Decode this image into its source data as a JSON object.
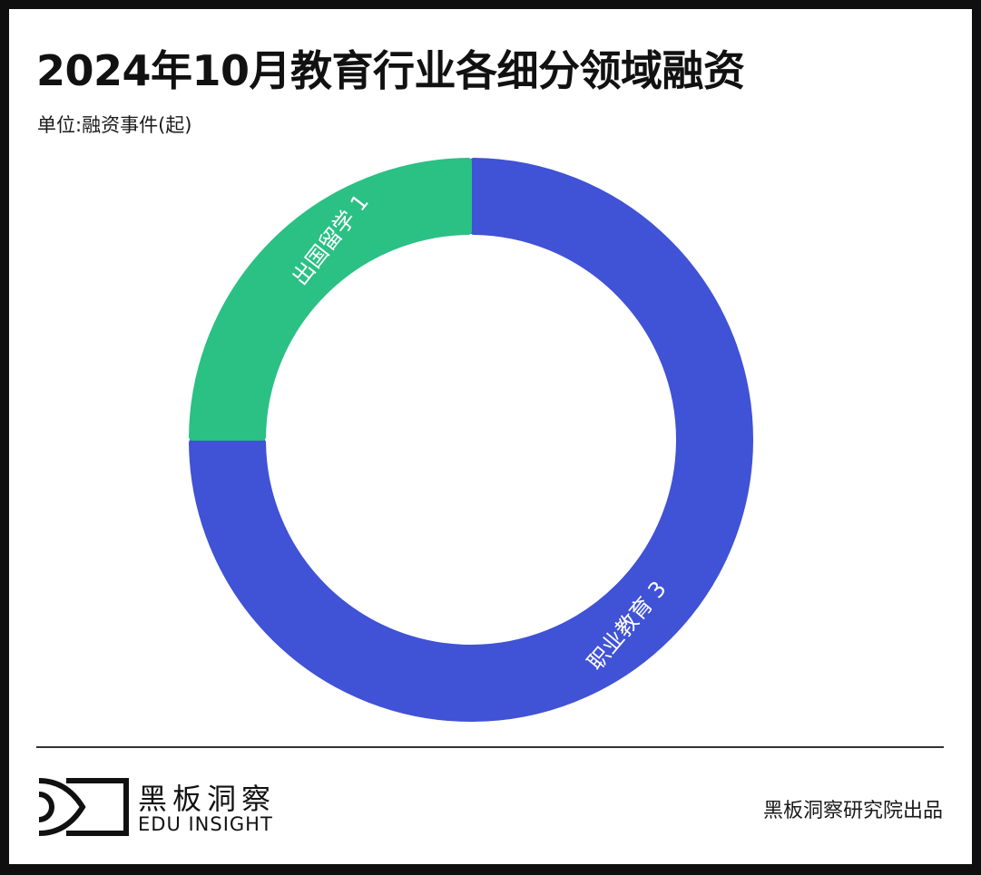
{
  "header": {
    "title": "2024年10月教育行业各细分领域融资",
    "subtitle": "单位:融资事件(起)"
  },
  "chart_data": {
    "type": "pie",
    "subtype": "donut",
    "title": "2024年10月教育行业各细分领域融资",
    "unit": "融资事件(起)",
    "categories": [
      "职业教育",
      "出国留学"
    ],
    "values": [
      3,
      1
    ],
    "colors": [
      "#4052d6",
      "#2bc084"
    ],
    "labels": [
      "职业教育 3",
      "出国留学 1"
    ],
    "legend": "none",
    "start_angle_deg": 0,
    "direction": "clockwise"
  },
  "footer": {
    "brand_cn": "黑板洞察",
    "brand_en": "EDU INSIGHT",
    "credit": "黑板洞察研究院出品",
    "logo_icon": "eye-frame-icon"
  }
}
